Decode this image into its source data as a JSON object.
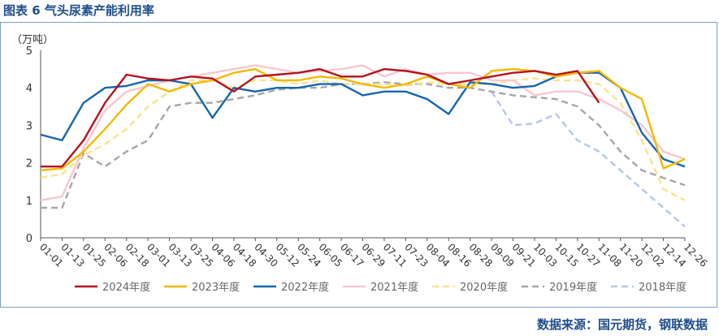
{
  "figure_title": "图表 6  气头尿素产能利用率",
  "source": "数据来源：国元期货，钢联数据",
  "chart_data": {
    "type": "line",
    "title": "图表 6  气头尿素产能利用率",
    "ylabel": "（万吨）",
    "xlabel": "",
    "ylim": [
      0,
      5
    ],
    "yticks": [
      "0",
      "1",
      "2",
      "3",
      "4",
      "5"
    ],
    "categories": [
      "01-01",
      "01-13",
      "01-25",
      "02-06",
      "02-18",
      "03-01",
      "03-13",
      "03-25",
      "04-06",
      "04-18",
      "04-30",
      "05-12",
      "05-24",
      "06-05",
      "06-17",
      "06-29",
      "07-11",
      "07-23",
      "08-04",
      "08-16",
      "08-28",
      "09-09",
      "09-21",
      "10-03",
      "10-15",
      "10-27",
      "11-08",
      "11-20",
      "12-02",
      "12-14",
      "12-26"
    ],
    "legend_position": "bottom",
    "series": [
      {
        "name": "2024年度",
        "color": "#b5121b",
        "dash": "solid",
        "values": [
          1.9,
          1.9,
          2.6,
          3.6,
          4.35,
          4.25,
          4.2,
          4.3,
          4.25,
          3.9,
          4.3,
          4.35,
          4.4,
          4.5,
          4.3,
          4.3,
          4.5,
          4.45,
          4.35,
          4.1,
          4.2,
          4.3,
          4.4,
          4.45,
          4.35,
          4.45,
          3.6,
          null,
          null,
          null,
          null
        ]
      },
      {
        "name": "2023年度",
        "color": "#f5b800",
        "dash": "solid",
        "values": [
          1.8,
          1.85,
          2.3,
          2.9,
          3.55,
          4.1,
          3.9,
          4.1,
          4.2,
          4.4,
          4.5,
          4.2,
          4.2,
          4.3,
          4.25,
          4.1,
          4.0,
          4.1,
          4.3,
          4.1,
          4.0,
          4.45,
          4.5,
          4.45,
          4.3,
          4.4,
          4.45,
          4.0,
          3.7,
          1.85,
          2.1
        ]
      },
      {
        "name": "2022年度",
        "color": "#1565b0",
        "dash": "solid",
        "values": [
          2.75,
          2.6,
          3.6,
          4.0,
          4.05,
          4.2,
          4.2,
          4.1,
          3.2,
          4.0,
          3.9,
          4.0,
          4.0,
          4.1,
          4.1,
          3.8,
          3.9,
          3.9,
          3.7,
          3.3,
          4.15,
          4.1,
          4.0,
          4.05,
          4.3,
          4.4,
          4.4,
          4.0,
          2.8,
          2.1,
          1.9
        ]
      },
      {
        "name": "2021年度",
        "color": "#f7c6d0",
        "dash": "solid",
        "values": [
          1.0,
          1.1,
          2.4,
          3.4,
          3.9,
          4.05,
          4.2,
          4.3,
          4.4,
          4.5,
          4.6,
          4.5,
          4.4,
          4.45,
          4.5,
          4.6,
          4.3,
          4.5,
          4.35,
          4.4,
          4.4,
          4.2,
          4.2,
          3.8,
          3.9,
          3.9,
          3.7,
          3.4,
          3.0,
          2.3,
          2.1
        ]
      },
      {
        "name": "2020年度",
        "color": "#fbe28a",
        "dash": "dash",
        "values": [
          1.6,
          1.7,
          2.2,
          2.5,
          2.9,
          3.5,
          3.9,
          4.2,
          4.2,
          4.0,
          4.2,
          4.2,
          4.1,
          4.2,
          4.1,
          4.1,
          4.1,
          4.05,
          4.15,
          4.1,
          4.1,
          4.1,
          4.2,
          4.25,
          4.2,
          4.2,
          4.1,
          3.6,
          2.6,
          1.3,
          1.0
        ]
      },
      {
        "name": "2019年度",
        "color": "#a6a6a6",
        "dash": "dash",
        "values": [
          0.8,
          0.8,
          2.25,
          1.9,
          2.3,
          2.6,
          3.5,
          3.6,
          3.6,
          3.7,
          3.8,
          3.95,
          4.0,
          4.0,
          4.1,
          4.1,
          4.15,
          4.1,
          4.1,
          4.0,
          4.0,
          3.9,
          3.8,
          3.75,
          3.7,
          3.5,
          3.0,
          2.3,
          1.8,
          1.6,
          1.4
        ]
      },
      {
        "name": "2018年度",
        "color": "#b4c7e7",
        "dash": "dash",
        "values": [
          null,
          null,
          null,
          null,
          null,
          null,
          null,
          null,
          null,
          null,
          null,
          null,
          null,
          null,
          null,
          null,
          null,
          null,
          null,
          null,
          null,
          3.9,
          3.0,
          3.05,
          3.3,
          2.6,
          2.3,
          1.8,
          1.3,
          0.8,
          0.3
        ]
      }
    ]
  }
}
